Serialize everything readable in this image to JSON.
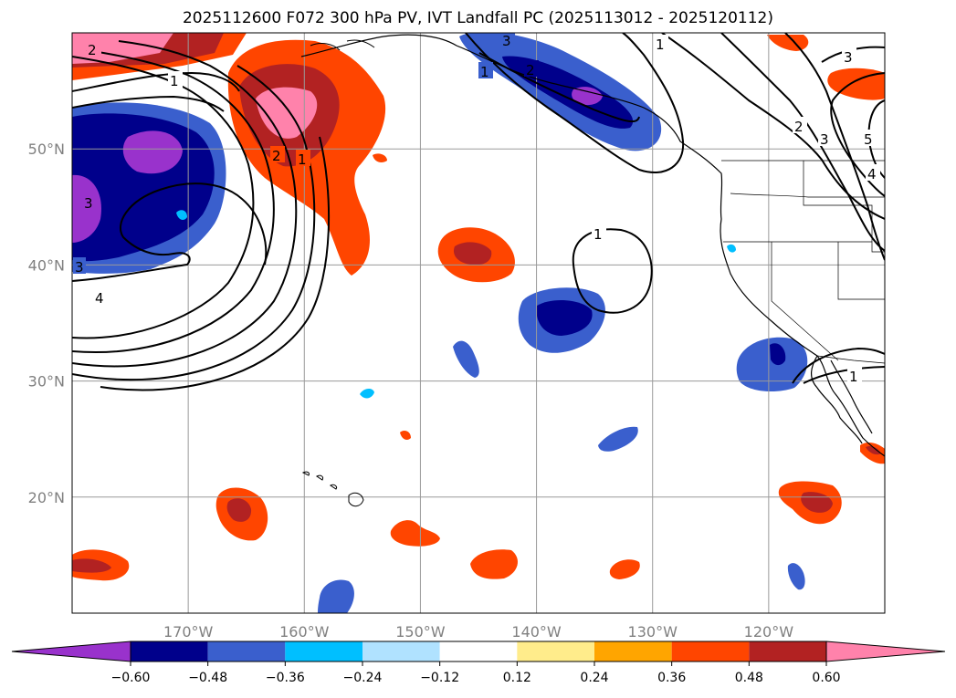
{
  "chart_data": {
    "type": "map",
    "title": "2025112600 F072 300 hPa PV, IVT Landfall PC (2025113012 - 2025120112)",
    "lon_range": [
      -180,
      -110
    ],
    "lat_range": [
      10,
      60
    ],
    "x_ticks": [
      -170,
      -160,
      -150,
      -140,
      -130,
      -120
    ],
    "x_tick_labels": [
      "170°W",
      "160°W",
      "150°W",
      "140°W",
      "130°W",
      "120°W"
    ],
    "y_ticks": [
      20,
      30,
      40,
      50
    ],
    "y_tick_labels": [
      "20°N",
      "30°N",
      "40°N",
      "50°N"
    ],
    "grid": true,
    "colorbar": {
      "orientation": "horizontal",
      "extend": "both",
      "levels": [
        -0.6,
        -0.48,
        -0.36,
        -0.24,
        -0.12,
        0.12,
        0.24,
        0.36,
        0.48,
        0.6
      ],
      "tick_labels": [
        "−0.60",
        "−0.48",
        "−0.36",
        "−0.24",
        "−0.12",
        "0.12",
        "0.24",
        "0.36",
        "0.48",
        "0.60"
      ],
      "colors": [
        "#9932cc",
        "#00008b",
        "#3a5fcd",
        "#00bfff",
        "#b0e2ff",
        "#ffffff",
        "#ffec8b",
        "#ffa500",
        "#ff4500",
        "#b22222",
        "#ff82ab"
      ]
    },
    "filled_anomalies": [
      {
        "name": "gulf-of-alaska-positive",
        "lon": -161,
        "lat": 52,
        "value": 0.6
      },
      {
        "name": "dateline-negative",
        "lon": -174,
        "lat": 46,
        "value": -0.6
      },
      {
        "name": "bc-coast-negative",
        "lon": -135,
        "lat": 55,
        "value": -0.6
      },
      {
        "name": "central-pacific-negative",
        "lon": -138,
        "lat": 36,
        "value": -0.5
      },
      {
        "name": "baja-negative",
        "lon": -120,
        "lat": 31,
        "value": -0.5
      },
      {
        "name": "northeast-pacific-positive",
        "lon": -144,
        "lat": 41,
        "value": 0.48
      },
      {
        "name": "hawaii-sw-positive",
        "lon": -165,
        "lat": 18,
        "value": 0.48
      },
      {
        "name": "mexico-positive",
        "lon": -116,
        "lat": 19,
        "value": 0.48
      },
      {
        "name": "far-southwest-positive",
        "lon": -178,
        "lat": 14,
        "value": 0.48
      },
      {
        "name": "northwest-corner-positive",
        "lon": -176,
        "lat": 58,
        "value": 0.6
      }
    ],
    "contour_labels": [
      "1",
      "2",
      "3",
      "4",
      "5"
    ]
  }
}
